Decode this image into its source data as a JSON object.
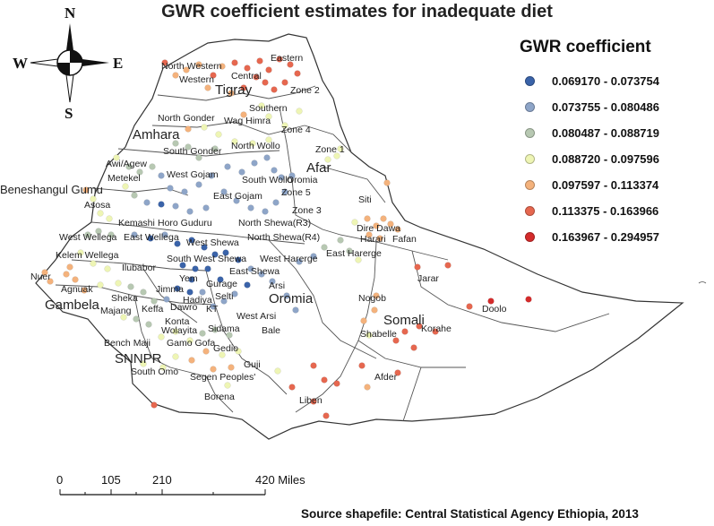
{
  "title": "GWR coefficient estimates for inadequate diet",
  "source": "Source shapefile: Central Statistical Agency Ethiopia, 2013",
  "compass": {
    "north": "N",
    "south": "S",
    "east": "E",
    "west": "W"
  },
  "legend": {
    "title": "GWR coefficient",
    "classes": [
      {
        "label": "0.069170 - 0.073754",
        "color": "#3a63a9"
      },
      {
        "label": "0.073755 - 0.080486",
        "color": "#8ea5c8"
      },
      {
        "label": "0.080487 - 0.088719",
        "color": "#b7c8b2"
      },
      {
        "label": "0.088720 - 0.097596",
        "color": "#eef5b4"
      },
      {
        "label": "0.097597 - 0.113374",
        "color": "#f4b27c"
      },
      {
        "label": "0.113375 - 0.163966",
        "color": "#e6674f"
      },
      {
        "label": "0.163967 - 0.294957",
        "color": "#d42b2b"
      }
    ]
  },
  "scale_bar": {
    "ticks": [
      "0",
      "105",
      "210",
      "420 Miles"
    ]
  },
  "regions": {
    "Tigray": "Tigray",
    "Amhara": "Amhara",
    "Afar": "Afar",
    "Beneshangul": "Beneshangul Gumu",
    "Gambela": "Gambela",
    "SNNPR": "SNNPR",
    "Oromia": "Oromia",
    "Somali": "Somali"
  },
  "zones": {
    "NorthWestern": "North Western",
    "Western": "Western",
    "Central": "Central",
    "Eastern": "Eastern",
    "Zone2": "Zone 2",
    "Southern": "Southern",
    "NorthGonder": "North Gonder",
    "WagHimra": "Wag Himra",
    "Zone4": "Zone 4",
    "SouthGonder": "South Gonder",
    "NorthWollo": "North Wollo",
    "Zone1": "Zone 1",
    "AwiAgew": "Awi/Agew",
    "Metekel": "Metekel",
    "WestGojam": "West Gojam",
    "SouthWollo": "South Wollo",
    "EastGojam": "East Gojam",
    "Zone5": "Zone 5",
    "OromiaZone": "Oromia",
    "Siti": "Siti",
    "Asosa": "Asosa",
    "Kemashi": "Kemashi",
    "HoroGuduru": "Horo Guduru",
    "NorthShewaR3": "North Shewa(R3)",
    "Zone3": "Zone 3",
    "DireDawa": "Dire Dawa",
    "WestWellega": "West Wellega",
    "EastWellega": "East Wellega",
    "WestShewa": "West Shewa",
    "NorthShewaR4": "North Shewa(R4)",
    "Harari": "Harari",
    "Fafan": "Fafan",
    "KelemWellega": "Kelem Wellega",
    "SouthWestShewa": "South West Shewa",
    "WestHarerge": "West Harerge",
    "EastHarerge": "East Harerge",
    "Ilubabor": "Ilubabor",
    "EastShewa": "East Shewa",
    "Nuer": "Nuer",
    "Yem": "Yem",
    "Gurage": "Gurage",
    "Arsi": "Arsi",
    "Jarar": "Jarar",
    "Agnuak": "Agnuak",
    "Sheka": "Sheka",
    "Jimma": "Jimma",
    "Hadiya": "Hadiya",
    "Selti": "Selti",
    "Nogob": "Nogob",
    "Doolo": "Doolo",
    "Majang": "Majang",
    "Keffa": "Keffa",
    "Konta": "Konta",
    "KT": "KT",
    "Dawro": "Dawro",
    "WestArsi": "West Arsi",
    "Wolayita": "Wolayita",
    "Sidama": "Sidama",
    "Korahe": "Korahe",
    "Bale": "Bale",
    "Shabelle": "Shabelle",
    "BenchMaji": "Bench Maji",
    "GamoGofa": "Gamo Gofa",
    "Gedio": "Gedio",
    "SouthOmo": "South Omo",
    "Guji": "Guji",
    "SegenPeoples": "Segen Peoples'",
    "Afder": "Afder",
    "Borena": "Borena",
    "Liben": "Liben"
  }
}
